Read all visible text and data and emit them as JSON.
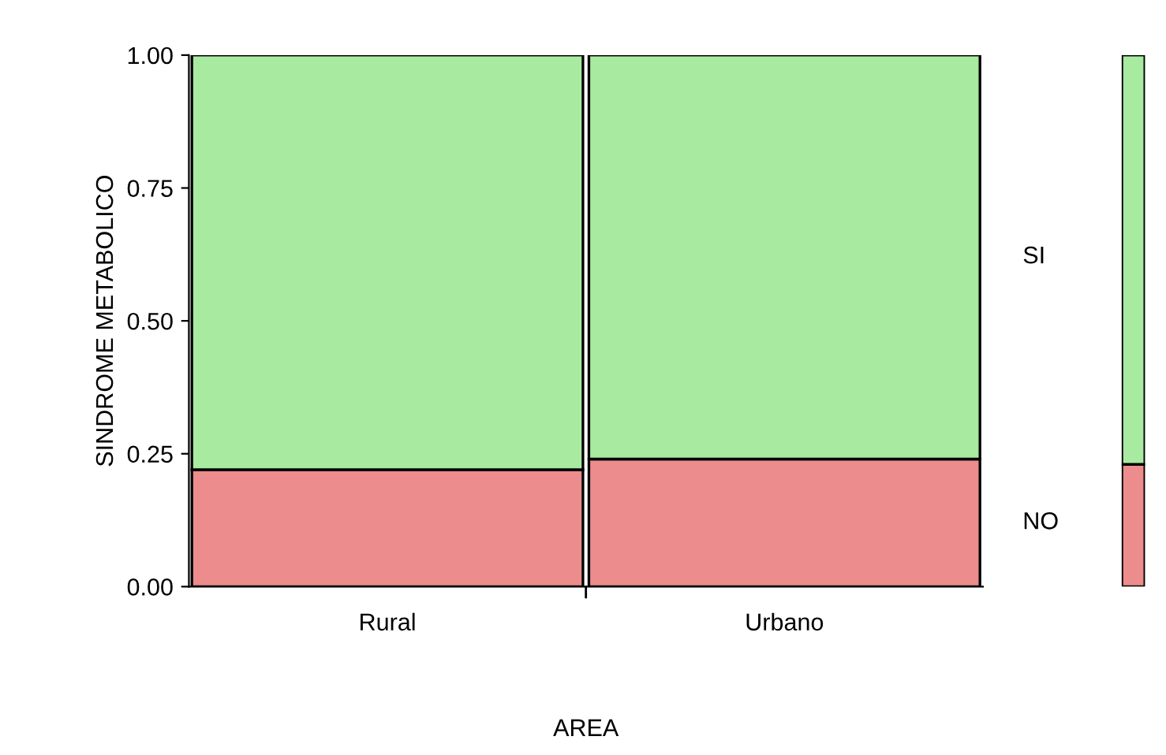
{
  "chart_data": [
    {
      "type": "bar",
      "stacked": true,
      "xlabel": "AREA",
      "ylabel": "SINDROME METABOLICO",
      "categories": [
        "Rural",
        "Urbano"
      ],
      "series": [
        {
          "name": "NO",
          "color": "#ec8c8c",
          "values": [
            0.22,
            0.24
          ]
        },
        {
          "name": "SI",
          "color": "#a8eaa0",
          "values": [
            0.78,
            0.76
          ]
        }
      ],
      "ylim": [
        0,
        1
      ],
      "yticks": [
        {
          "value": 0,
          "label": "0.00"
        },
        {
          "value": 0.25,
          "label": "0.25"
        },
        {
          "value": 0.5,
          "label": "0.50"
        },
        {
          "value": 0.75,
          "label": "0.75"
        },
        {
          "value": 1,
          "label": "1.00"
        }
      ],
      "grid": false,
      "legend": false
    },
    {
      "type": "bar",
      "stacked": true,
      "categories": [
        null
      ],
      "series": [
        {
          "color": "#ec8c8c",
          "values": [
            0.23
          ]
        },
        {
          "color": "#a8eaa0",
          "values": [
            0.77
          ]
        }
      ],
      "ylim": [
        0,
        1
      ],
      "tick_labels": false,
      "grid": false,
      "legend": false
    }
  ]
}
